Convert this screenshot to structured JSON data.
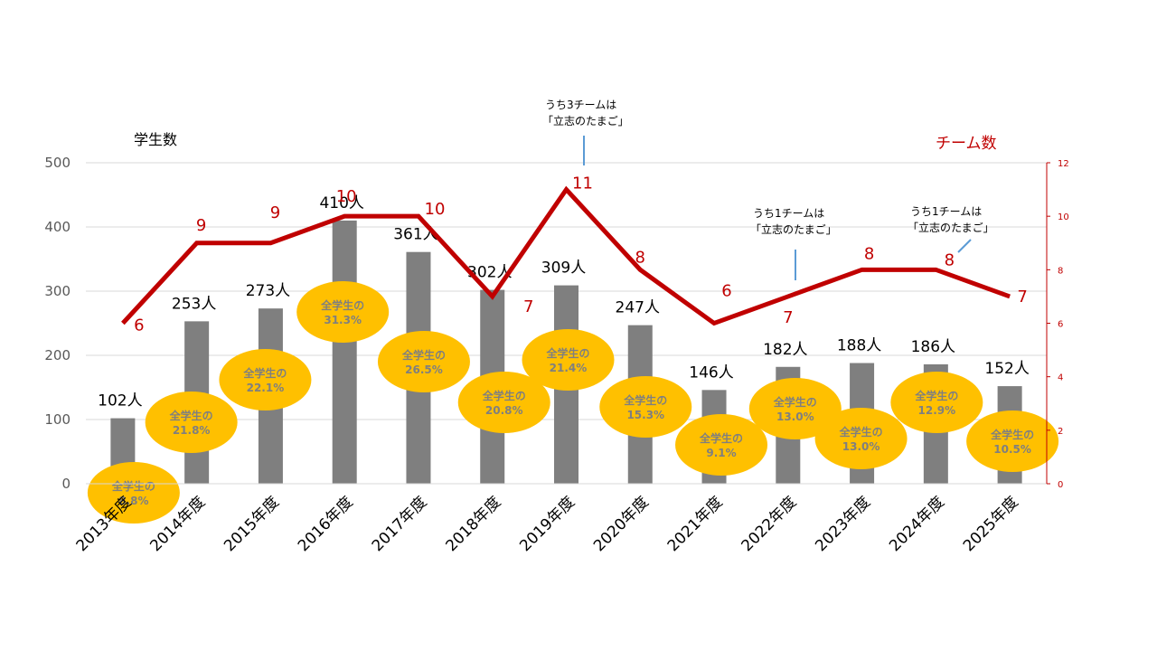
{
  "chart_data": {
    "type": "bar",
    "categories": [
      "2013年度",
      "2014年度",
      "2015年度",
      "2016年度",
      "2017年度",
      "2018年度",
      "2019年度",
      "2020年度",
      "2021年度",
      "2022年度",
      "2023年度",
      "2024年度",
      "2025年度"
    ],
    "series": [
      {
        "name": "学生数",
        "type": "bar",
        "axis": "left",
        "values": [
          102,
          253,
          273,
          410,
          361,
          302,
          309,
          247,
          146,
          182,
          188,
          186,
          152
        ],
        "data_labels": [
          "102人",
          "253人",
          "273人",
          "410人",
          "361人",
          "302人",
          "309人",
          "247人",
          "146人",
          "182人",
          "188人",
          "186人",
          "152人"
        ]
      },
      {
        "name": "チーム数",
        "type": "line",
        "axis": "right",
        "values": [
          6,
          9,
          9,
          10,
          10,
          7,
          11,
          8,
          6,
          7,
          8,
          8,
          7
        ],
        "data_labels": [
          "6",
          "9",
          "9",
          "10",
          "10",
          "7",
          "11",
          "8",
          "6",
          "7",
          "8",
          "8",
          "7"
        ]
      }
    ],
    "share_labels": {
      "prefix": "全学生の",
      "values": [
        "8.8%",
        "21.8%",
        "22.1%",
        "31.3%",
        "26.5%",
        "20.8%",
        "21.4%",
        "15.3%",
        "9.1%",
        "13.0%",
        "13.0%",
        "12.9%",
        "10.5%"
      ]
    },
    "annotations": [
      {
        "category": "2019年度",
        "line1": "うち3チームは",
        "line2": "「立志のたまご」"
      },
      {
        "category": "2022年度",
        "line1": "うち1チームは",
        "line2": "「立志のたまご」"
      },
      {
        "category": "2024年度",
        "line1": "うち1チームは",
        "line2": "「立志のたまご」"
      }
    ],
    "y_left": {
      "title": "学生数",
      "min": 0,
      "max": 500,
      "ticks": [
        0,
        100,
        200,
        300,
        400,
        500
      ]
    },
    "y_right": {
      "title": "チーム数",
      "min": 0,
      "max": 12,
      "ticks": [
        0,
        2,
        4,
        6,
        8,
        10,
        12
      ]
    },
    "grid": true,
    "colors": {
      "bar": "#7F7F7F",
      "line": "#C00000",
      "bubble": "#FFC000",
      "bubble_text": "#7F7F7F",
      "grid": "#D9D9D9",
      "callout": "#5B9BD5"
    }
  }
}
